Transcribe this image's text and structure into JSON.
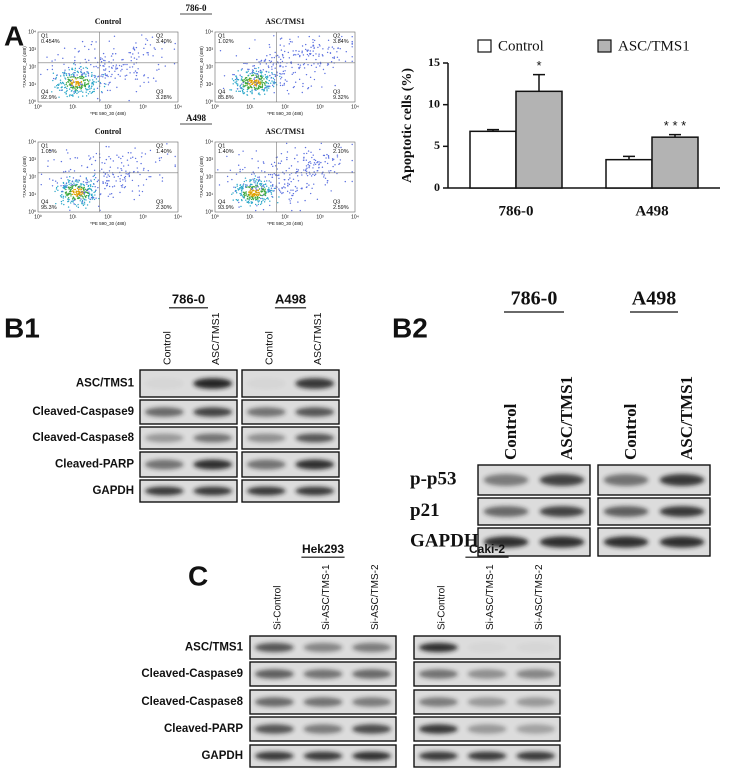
{
  "panels": {
    "a": "A",
    "b1": "B1",
    "b2": "B2",
    "c": "C"
  },
  "flow": {
    "x_label": "*PE 590_30 (488)",
    "y_label": "*7AAD 692_40 (488)",
    "ticks": [
      "10⁰",
      "10¹",
      "10²",
      "10³",
      "10⁴"
    ],
    "groups": [
      {
        "cell_line": "786-0",
        "plots": [
          {
            "condition": "Control",
            "quadrants": [
              {
                "name": "Q1",
                "value": "0.454%"
              },
              {
                "name": "Q2",
                "value": "3.40%"
              },
              {
                "name": "Q4",
                "value": "92.9%"
              },
              {
                "name": "Q3",
                "value": "3.28%"
              }
            ]
          },
          {
            "condition": "ASC/TMS1",
            "quadrants": [
              {
                "name": "Q1",
                "value": "1.02%"
              },
              {
                "name": "Q2",
                "value": "3.84%"
              },
              {
                "name": "Q4",
                "value": "85.8%"
              },
              {
                "name": "Q3",
                "value": "9.32%"
              }
            ]
          }
        ]
      },
      {
        "cell_line": "A498",
        "plots": [
          {
            "condition": "Control",
            "quadrants": [
              {
                "name": "Q1",
                "value": "1.05%"
              },
              {
                "name": "Q2",
                "value": "1.40%"
              },
              {
                "name": "Q4",
                "value": "95.3%"
              },
              {
                "name": "Q3",
                "value": "2.30%"
              }
            ]
          },
          {
            "condition": "ASC/TMS1",
            "quadrants": [
              {
                "name": "Q1",
                "value": "1.40%"
              },
              {
                "name": "Q2",
                "value": "2.10%"
              },
              {
                "name": "Q4",
                "value": "93.9%"
              },
              {
                "name": "Q3",
                "value": "2.59%"
              }
            ]
          }
        ]
      }
    ]
  },
  "chart_data": {
    "type": "bar",
    "y_label": "Apoptotic cells (%)",
    "categories": [
      "786-0",
      "A498"
    ],
    "series": [
      {
        "name": "Control",
        "color": "#ffffff",
        "values": [
          6.8,
          3.4
        ],
        "errors": [
          0.2,
          0.4
        ]
      },
      {
        "name": "ASC/TMS1",
        "color": "#b3b3b3",
        "values": [
          11.6,
          6.1
        ],
        "errors": [
          2.0,
          0.3
        ],
        "annotations": [
          "*",
          "* * *"
        ]
      }
    ],
    "ylim": [
      0,
      15
    ],
    "yticks": [
      0,
      5,
      10,
      15
    ],
    "legend": "top"
  },
  "blot_b1": {
    "groups": [
      {
        "cell_line": "786-0"
      },
      {
        "cell_line": "A498"
      }
    ],
    "lanes": [
      "Control",
      "ASC/TMS1"
    ],
    "rows": [
      "ASC/TMS1",
      "Cleaved-Caspase9",
      "Cleaved-Caspase8",
      "Cleaved-PARP",
      "GAPDH"
    ]
  },
  "blot_b2": {
    "groups": [
      {
        "cell_line": "786-0"
      },
      {
        "cell_line": "A498"
      }
    ],
    "lanes": [
      "Control",
      "ASC/TMS1"
    ],
    "rows": [
      "p-p53",
      "p21",
      "GAPDH"
    ]
  },
  "blot_c": {
    "groups": [
      {
        "cell_line": "Hek293"
      },
      {
        "cell_line": "Caki-2"
      }
    ],
    "lanes": [
      "Si-Control",
      "Si-ASC/TMS-1",
      "Si-ASC/TMS-2"
    ],
    "rows": [
      "ASC/TMS1",
      "Cleaved-Caspase9",
      "Cleaved-Caspase8",
      "Cleaved-PARP",
      "GAPDH"
    ]
  }
}
